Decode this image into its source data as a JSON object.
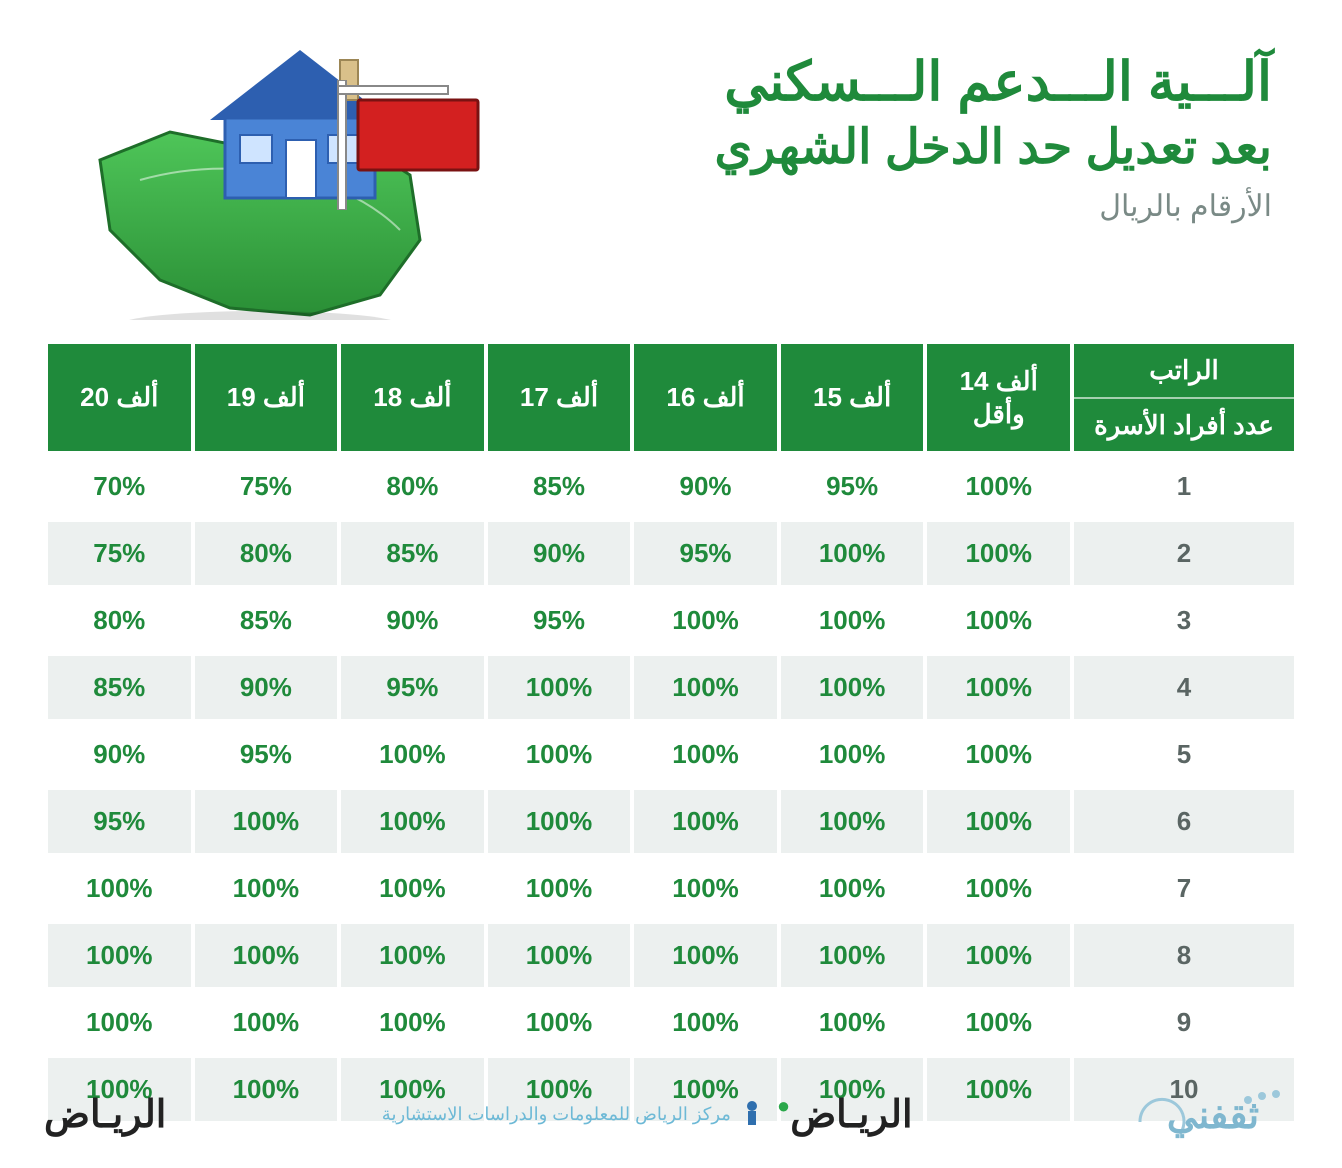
{
  "colors": {
    "header_green": "#1f8a3b",
    "title_green": "#1f8a3b",
    "note_gray": "#7a8a86",
    "row_even": "#ffffff",
    "row_odd": "#ecf0ef",
    "cell_text": "#1f8a3b",
    "rownum_text": "#5a6563",
    "map_green": "#3fb64a",
    "map_dark": "#2a8f36",
    "house_wall": "#4a84d6",
    "house_roof": "#2d5fb0",
    "house_window": "#ffffff",
    "sign_red": "#d32020",
    "footer_src": "#6db9d6",
    "thaqfny": "#7fb7cf"
  },
  "title": {
    "line1": "آلـــية الـــدعم الـــسكني",
    "line2": "بعد تعديل حد الدخل الشهري",
    "note": "الأرقام بالريال"
  },
  "table": {
    "salary_columns": [
      "20 ألف",
      "19 ألف",
      "18 ألف",
      "17 ألف",
      "16 ألف",
      "15 ألف",
      "14 ألف\nوأقل"
    ],
    "corner_top": "الراتب",
    "corner_bottom": "عدد أفراد الأسرة",
    "rows": [
      {
        "n": "1",
        "v": [
          "70%",
          "75%",
          "80%",
          "85%",
          "90%",
          "95%",
          "100%"
        ]
      },
      {
        "n": "2",
        "v": [
          "75%",
          "80%",
          "85%",
          "90%",
          "95%",
          "100%",
          "100%"
        ]
      },
      {
        "n": "3",
        "v": [
          "80%",
          "85%",
          "90%",
          "95%",
          "100%",
          "100%",
          "100%"
        ]
      },
      {
        "n": "4",
        "v": [
          "85%",
          "90%",
          "95%",
          "100%",
          "100%",
          "100%",
          "100%"
        ]
      },
      {
        "n": "5",
        "v": [
          "90%",
          "95%",
          "100%",
          "100%",
          "100%",
          "100%",
          "100%"
        ]
      },
      {
        "n": "6",
        "v": [
          "95%",
          "100%",
          "100%",
          "100%",
          "100%",
          "100%",
          "100%"
        ]
      },
      {
        "n": "7",
        "v": [
          "100%",
          "100%",
          "100%",
          "100%",
          "100%",
          "100%",
          "100%"
        ]
      },
      {
        "n": "8",
        "v": [
          "100%",
          "100%",
          "100%",
          "100%",
          "100%",
          "100%",
          "100%"
        ]
      },
      {
        "n": "9",
        "v": [
          "100%",
          "100%",
          "100%",
          "100%",
          "100%",
          "100%",
          "100%"
        ]
      },
      {
        "n": "10",
        "v": [
          "100%",
          "100%",
          "100%",
          "100%",
          "100%",
          "100%",
          "100%"
        ]
      }
    ]
  },
  "footer": {
    "riyadh": "الريـاض",
    "source": "مركز الرياض للمعلومات والدراسات الاستشارية",
    "thaqfny": "ثقفني"
  }
}
